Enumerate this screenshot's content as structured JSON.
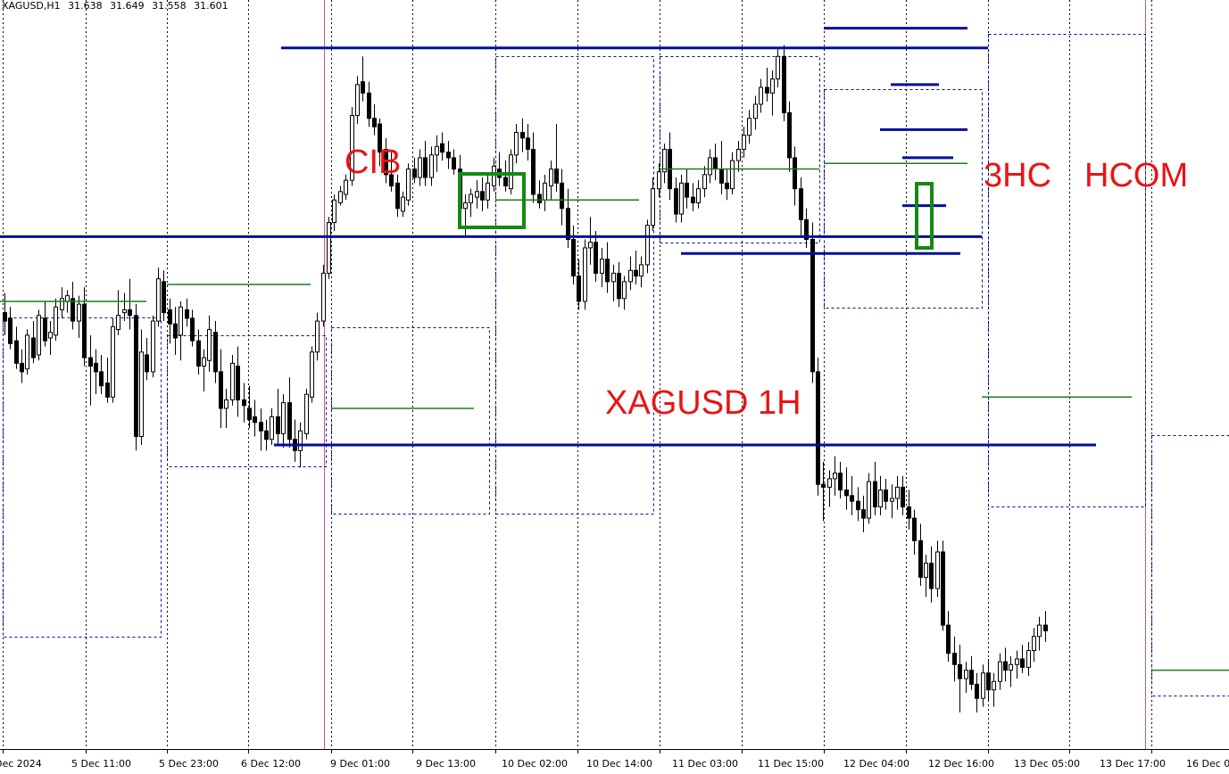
{
  "header": {
    "symbol": "XAGUSD,H1",
    "open": "31.638",
    "high": "31.649",
    "low": "31.558",
    "close": "31.601"
  },
  "annotations": {
    "cib": "CIB",
    "xhc": "3HC",
    "hcom": "HCOM",
    "chart_name": "XAGUSD 1H"
  },
  "colors": {
    "level_line": "#000e9b",
    "green_line": "#1f7a1f",
    "green_box": "#138a13",
    "dotted_range": "#000e9b",
    "separator": "#c4559d",
    "grid": "#000000",
    "candle_bull": "#ffffff",
    "candle_bear": "#000000",
    "annotation_text": "#e81414"
  },
  "chart_data": {
    "type": "candlestick",
    "symbol": "XAGUSD",
    "timeframe": "H1",
    "x_tick_labels": [
      "Dec 2024",
      "5 Dec 11:00",
      "5 Dec 23:00",
      "6 Dec 12:00",
      "9 Dec 01:00",
      "9 Dec 13:00",
      "10 Dec 02:00",
      "10 Dec 14:00",
      "11 Dec 03:00",
      "11 Dec 15:00",
      "12 Dec 04:00",
      "12 Dec 16:00",
      "13 Dec 05:00",
      "13 Dec 17:00",
      "16 Dec 0"
    ],
    "y_range": [
      30.25,
      32.6
    ],
    "grid": "vertical dotted",
    "price_axis_visible": false,
    "candles": [
      [
        31.61,
        31.68,
        31.53,
        31.58
      ],
      [
        31.59,
        31.63,
        31.48,
        31.5
      ],
      [
        31.51,
        31.56,
        31.41,
        31.43
      ],
      [
        31.43,
        31.48,
        31.36,
        31.4
      ],
      [
        31.41,
        31.55,
        31.39,
        31.53
      ],
      [
        31.52,
        31.58,
        31.43,
        31.45
      ],
      [
        31.46,
        31.62,
        31.44,
        31.6
      ],
      [
        31.59,
        31.65,
        31.49,
        31.51
      ],
      [
        31.52,
        31.58,
        31.46,
        31.54
      ],
      [
        31.53,
        31.66,
        31.51,
        31.63
      ],
      [
        31.62,
        31.7,
        31.59,
        31.66
      ],
      [
        31.65,
        31.69,
        31.61,
        31.67
      ],
      [
        31.66,
        31.72,
        31.55,
        31.58
      ],
      [
        31.58,
        31.67,
        31.52,
        31.64
      ],
      [
        31.64,
        31.7,
        31.42,
        31.45
      ],
      [
        31.45,
        31.53,
        31.28,
        31.42
      ],
      [
        31.43,
        31.48,
        31.32,
        31.4
      ],
      [
        31.4,
        31.46,
        31.32,
        31.35
      ],
      [
        31.36,
        31.45,
        31.29,
        31.31
      ],
      [
        31.31,
        31.59,
        31.29,
        31.56
      ],
      [
        31.55,
        31.69,
        31.53,
        31.6
      ],
      [
        31.61,
        31.68,
        31.58,
        31.62
      ],
      [
        31.62,
        31.73,
        31.55,
        31.6
      ],
      [
        31.6,
        31.64,
        31.12,
        31.17
      ],
      [
        31.17,
        31.55,
        31.14,
        31.47
      ],
      [
        31.46,
        31.52,
        31.37,
        31.4
      ],
      [
        31.4,
        31.6,
        31.38,
        31.58
      ],
      [
        31.58,
        31.77,
        31.56,
        31.73
      ],
      [
        31.72,
        31.76,
        31.58,
        31.61
      ],
      [
        31.62,
        31.66,
        31.5,
        31.57
      ],
      [
        31.57,
        31.63,
        31.46,
        31.52
      ],
      [
        31.53,
        31.65,
        31.44,
        31.63
      ],
      [
        31.62,
        31.66,
        31.56,
        31.59
      ],
      [
        31.59,
        31.62,
        31.49,
        31.51
      ],
      [
        31.51,
        31.55,
        31.39,
        31.42
      ],
      [
        31.42,
        31.48,
        31.33,
        31.45
      ],
      [
        31.44,
        31.6,
        31.4,
        31.55
      ],
      [
        31.54,
        31.58,
        31.36,
        31.4
      ],
      [
        31.4,
        31.48,
        31.2,
        31.27
      ],
      [
        31.27,
        31.34,
        31.2,
        31.3
      ],
      [
        31.3,
        31.46,
        31.28,
        31.43
      ],
      [
        31.42,
        31.49,
        31.24,
        31.3
      ],
      [
        31.3,
        31.36,
        31.22,
        31.28
      ],
      [
        31.27,
        31.35,
        31.2,
        31.23
      ],
      [
        31.24,
        31.3,
        31.17,
        31.22
      ],
      [
        31.22,
        31.27,
        31.12,
        31.19
      ],
      [
        31.19,
        31.23,
        31.12,
        31.16
      ],
      [
        31.16,
        31.27,
        31.14,
        31.24
      ],
      [
        31.24,
        31.34,
        31.14,
        31.18
      ],
      [
        31.18,
        31.32,
        31.13,
        31.29
      ],
      [
        31.29,
        31.38,
        31.13,
        31.16
      ],
      [
        31.16,
        31.23,
        31.08,
        31.12
      ],
      [
        31.12,
        31.22,
        31.06,
        31.19
      ],
      [
        31.18,
        31.34,
        31.16,
        31.32
      ],
      [
        31.31,
        31.49,
        31.29,
        31.47
      ],
      [
        31.47,
        31.61,
        31.44,
        31.58
      ],
      [
        31.58,
        31.78,
        31.56,
        31.75
      ],
      [
        31.75,
        31.95,
        31.73,
        31.93
      ],
      [
        31.93,
        32.03,
        31.9,
        32.01
      ],
      [
        32.0,
        32.06,
        31.99,
        32.04
      ],
      [
        32.03,
        32.1,
        32.01,
        32.08
      ],
      [
        32.08,
        32.34,
        32.06,
        32.31
      ],
      [
        32.31,
        32.45,
        32.28,
        32.42
      ],
      [
        32.43,
        32.52,
        32.36,
        32.39
      ],
      [
        32.39,
        32.43,
        32.27,
        32.3
      ],
      [
        32.3,
        32.35,
        32.24,
        32.27
      ],
      [
        32.28,
        32.3,
        32.13,
        32.18
      ],
      [
        32.19,
        32.23,
        32.07,
        32.1
      ],
      [
        32.1,
        32.18,
        32.04,
        32.06
      ],
      [
        32.07,
        32.1,
        31.95,
        31.98
      ],
      [
        31.97,
        32.04,
        31.95,
        32.02
      ],
      [
        32.01,
        32.14,
        31.99,
        32.12
      ],
      [
        32.12,
        32.16,
        32.07,
        32.09
      ],
      [
        32.09,
        32.19,
        32.06,
        32.16
      ],
      [
        32.16,
        32.22,
        32.06,
        32.09
      ],
      [
        32.09,
        32.2,
        32.06,
        32.17
      ],
      [
        32.17,
        32.24,
        32.11,
        32.2
      ],
      [
        32.21,
        32.25,
        32.15,
        32.18
      ],
      [
        32.18,
        32.22,
        32.12,
        32.16
      ],
      [
        32.16,
        32.19,
        32.1,
        32.12
      ],
      [
        32.12,
        32.17,
        31.93,
        31.98
      ],
      [
        31.98,
        32.03,
        31.88,
        32.0
      ],
      [
        32.0,
        32.05,
        31.95,
        32.03
      ],
      [
        32.02,
        32.08,
        31.98,
        32.04
      ],
      [
        32.04,
        32.09,
        31.97,
        32.01
      ],
      [
        32.01,
        32.1,
        31.98,
        32.07
      ],
      [
        32.06,
        32.16,
        32.04,
        32.13
      ],
      [
        32.12,
        32.18,
        32.06,
        32.09
      ],
      [
        32.09,
        32.15,
        32.04,
        32.06
      ],
      [
        32.05,
        32.19,
        32.03,
        32.17
      ],
      [
        32.17,
        32.28,
        32.14,
        32.25
      ],
      [
        32.25,
        32.3,
        32.18,
        32.23
      ],
      [
        32.23,
        32.28,
        32.15,
        32.19
      ],
      [
        32.19,
        32.25,
        32.0,
        32.03
      ],
      [
        32.03,
        32.08,
        31.98,
        32.0
      ],
      [
        32.01,
        32.1,
        31.97,
        32.07
      ],
      [
        32.06,
        32.15,
        32.01,
        32.12
      ],
      [
        32.12,
        32.28,
        32.04,
        32.07
      ],
      [
        32.07,
        32.12,
        31.92,
        31.98
      ],
      [
        31.98,
        32.05,
        31.84,
        31.87
      ],
      [
        31.87,
        31.92,
        31.71,
        31.74
      ],
      [
        31.74,
        31.8,
        31.62,
        31.65
      ],
      [
        31.65,
        31.87,
        31.62,
        31.84
      ],
      [
        31.84,
        31.95,
        31.78,
        31.86
      ],
      [
        31.86,
        31.9,
        31.72,
        31.75
      ],
      [
        31.75,
        31.84,
        31.7,
        31.8
      ],
      [
        31.8,
        31.86,
        31.68,
        31.72
      ],
      [
        31.72,
        31.78,
        31.65,
        31.75
      ],
      [
        31.75,
        31.79,
        31.63,
        31.66
      ],
      [
        31.66,
        31.74,
        31.62,
        31.72
      ],
      [
        31.72,
        31.81,
        31.69,
        31.76
      ],
      [
        31.76,
        31.83,
        31.71,
        31.74
      ],
      [
        31.74,
        31.81,
        31.7,
        31.78
      ],
      [
        31.78,
        31.94,
        31.75,
        31.92
      ],
      [
        31.92,
        32.09,
        31.9,
        32.05
      ],
      [
        32.05,
        32.14,
        32.02,
        32.11
      ],
      [
        32.11,
        32.21,
        32.07,
        32.19
      ],
      [
        32.19,
        32.25,
        32.01,
        32.05
      ],
      [
        32.05,
        32.09,
        31.93,
        31.96
      ],
      [
        31.96,
        32.1,
        31.93,
        32.07
      ],
      [
        32.07,
        32.12,
        31.98,
        32.02
      ],
      [
        32.02,
        32.07,
        31.97,
        32.0
      ],
      [
        32.0,
        32.08,
        31.98,
        32.05
      ],
      [
        32.05,
        32.13,
        32.02,
        32.1
      ],
      [
        32.1,
        32.19,
        32.07,
        32.16
      ],
      [
        32.16,
        32.21,
        32.08,
        32.12
      ],
      [
        32.12,
        32.22,
        32.03,
        32.07
      ],
      [
        32.07,
        32.12,
        32.01,
        32.05
      ],
      [
        32.05,
        32.18,
        32.03,
        32.15
      ],
      [
        32.15,
        32.22,
        32.11,
        32.19
      ],
      [
        32.19,
        32.27,
        32.16,
        32.24
      ],
      [
        32.24,
        32.33,
        32.21,
        32.3
      ],
      [
        32.3,
        32.38,
        32.26,
        32.35
      ],
      [
        32.35,
        32.44,
        32.32,
        32.41
      ],
      [
        32.41,
        32.48,
        32.36,
        32.39
      ],
      [
        32.39,
        32.47,
        32.31,
        32.44
      ],
      [
        32.44,
        32.55,
        32.41,
        32.52
      ],
      [
        32.52,
        32.56,
        32.29,
        32.32
      ],
      [
        32.32,
        32.36,
        32.11,
        32.16
      ],
      [
        32.16,
        32.2,
        31.99,
        32.05
      ],
      [
        32.05,
        32.09,
        31.88,
        31.94
      ],
      [
        31.94,
        31.98,
        31.84,
        31.87
      ],
      [
        31.87,
        31.93,
        31.36,
        31.4
      ],
      [
        31.4,
        31.45,
        30.96,
        31.0
      ],
      [
        31.0,
        31.08,
        30.87,
        30.99
      ],
      [
        30.99,
        31.05,
        30.92,
        31.02
      ],
      [
        31.02,
        31.1,
        30.96,
        31.04
      ],
      [
        31.04,
        31.08,
        30.95,
        30.98
      ],
      [
        30.98,
        31.06,
        30.91,
        30.96
      ],
      [
        30.96,
        31.03,
        30.89,
        30.94
      ],
      [
        30.94,
        30.99,
        30.87,
        30.91
      ],
      [
        30.91,
        30.96,
        30.83,
        30.88
      ],
      [
        30.88,
        31.04,
        30.86,
        31.01
      ],
      [
        31.01,
        31.08,
        30.89,
        30.92
      ],
      [
        30.92,
        31.03,
        30.89,
        30.98
      ],
      [
        30.98,
        31.02,
        30.91,
        30.94
      ],
      [
        30.94,
        31.0,
        30.88,
        30.95
      ],
      [
        30.95,
        31.03,
        30.91,
        30.99
      ],
      [
        30.99,
        31.03,
        30.89,
        30.92
      ],
      [
        30.92,
        30.98,
        30.84,
        30.88
      ],
      [
        30.88,
        30.91,
        30.75,
        30.8
      ],
      [
        30.8,
        30.86,
        30.64,
        30.67
      ],
      [
        30.67,
        30.75,
        30.6,
        30.72
      ],
      [
        30.72,
        30.78,
        30.58,
        30.63
      ],
      [
        30.63,
        30.8,
        30.6,
        30.76
      ],
      [
        30.76,
        30.8,
        30.48,
        30.5
      ],
      [
        30.5,
        30.55,
        30.37,
        30.4
      ],
      [
        30.4,
        30.46,
        30.3,
        30.36
      ],
      [
        30.36,
        30.43,
        30.19,
        30.31
      ],
      [
        30.31,
        30.37,
        30.26,
        30.34
      ],
      [
        30.34,
        30.39,
        30.27,
        30.29
      ],
      [
        30.29,
        30.33,
        30.19,
        30.24
      ],
      [
        30.24,
        30.36,
        30.21,
        30.33
      ],
      [
        30.33,
        30.38,
        30.23,
        30.27
      ],
      [
        30.27,
        30.33,
        30.21,
        30.3
      ],
      [
        30.3,
        30.4,
        30.27,
        30.37
      ],
      [
        30.37,
        30.42,
        30.3,
        30.34
      ],
      [
        30.34,
        30.39,
        30.28,
        30.36
      ],
      [
        30.36,
        30.41,
        30.31,
        30.38
      ],
      [
        30.38,
        30.43,
        30.33,
        30.35
      ],
      [
        30.35,
        30.44,
        30.32,
        30.41
      ],
      [
        30.41,
        30.49,
        30.37,
        30.46
      ],
      [
        30.46,
        30.53,
        30.41,
        30.5
      ],
      [
        30.5,
        30.55,
        30.44,
        30.48
      ]
    ],
    "horizontal_levels": [
      {
        "price": 32.55,
        "from": "9 Dec 01:00",
        "to": "12 Dec 16:00",
        "color": "blue"
      },
      {
        "price": 31.88,
        "from": "Dec 2024",
        "to": "12 Dec 16:00",
        "color": "blue"
      },
      {
        "price": 31.82,
        "from": "11 Dec 03:00",
        "to": "12 Dec 16:00",
        "color": "blue"
      },
      {
        "price": 31.14,
        "from": "6 Dec 12:00",
        "to": "13 Dec 05:00",
        "color": "blue"
      },
      {
        "price": 32.62,
        "from": "11 Dec 15:00",
        "to": "12 Dec 16:00",
        "color": "blue"
      },
      {
        "price": 32.42,
        "from": "12 Dec 04:00",
        "to": "12 Dec 16:00",
        "color": "blue"
      },
      {
        "price": 32.26,
        "from": "12 Dec 04:00",
        "to": "12 Dec 16:00",
        "color": "blue"
      },
      {
        "price": 32.16,
        "from": "12 Dec 04:00",
        "to": "12 Dec 16:00",
        "color": "blue"
      },
      {
        "price": 31.99,
        "from": "12 Dec 04:00",
        "to": "12 Dec 16:00",
        "color": "blue"
      }
    ]
  }
}
